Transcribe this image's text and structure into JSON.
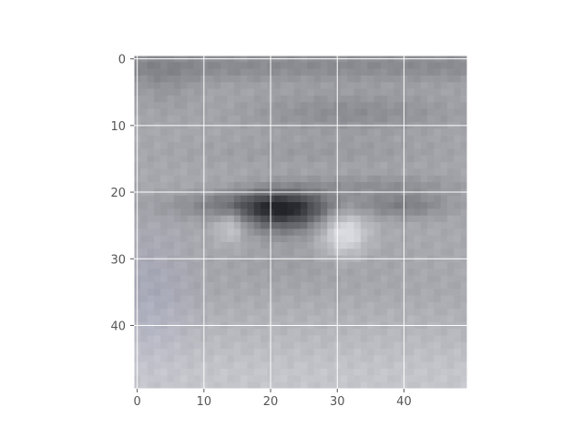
{
  "chart_data": {
    "type": "heatmap",
    "description_of_content": "",
    "title": "",
    "xlabel": "",
    "ylabel": "",
    "xlim": [
      -0.5,
      49.5
    ],
    "ylim": [
      49.5,
      -0.5
    ],
    "image_size": [
      50,
      50
    ],
    "grid": true,
    "grid_color": "#ffffff",
    "x_ticks": [
      0,
      10,
      20,
      30,
      40
    ],
    "x_tick_labels": [
      "0",
      "10",
      "20",
      "30",
      "40"
    ],
    "y_ticks": [
      0,
      10,
      20,
      30,
      40
    ],
    "y_tick_labels": [
      "0",
      "10",
      "20",
      "30",
      "40"
    ],
    "colormap": "grayscale photo (eye close-up)",
    "colors": {
      "dark": "#2e2c34",
      "mid": "#9a9aa2",
      "light": "#d6d8da",
      "cool_tint": "#b9bbcc"
    }
  }
}
